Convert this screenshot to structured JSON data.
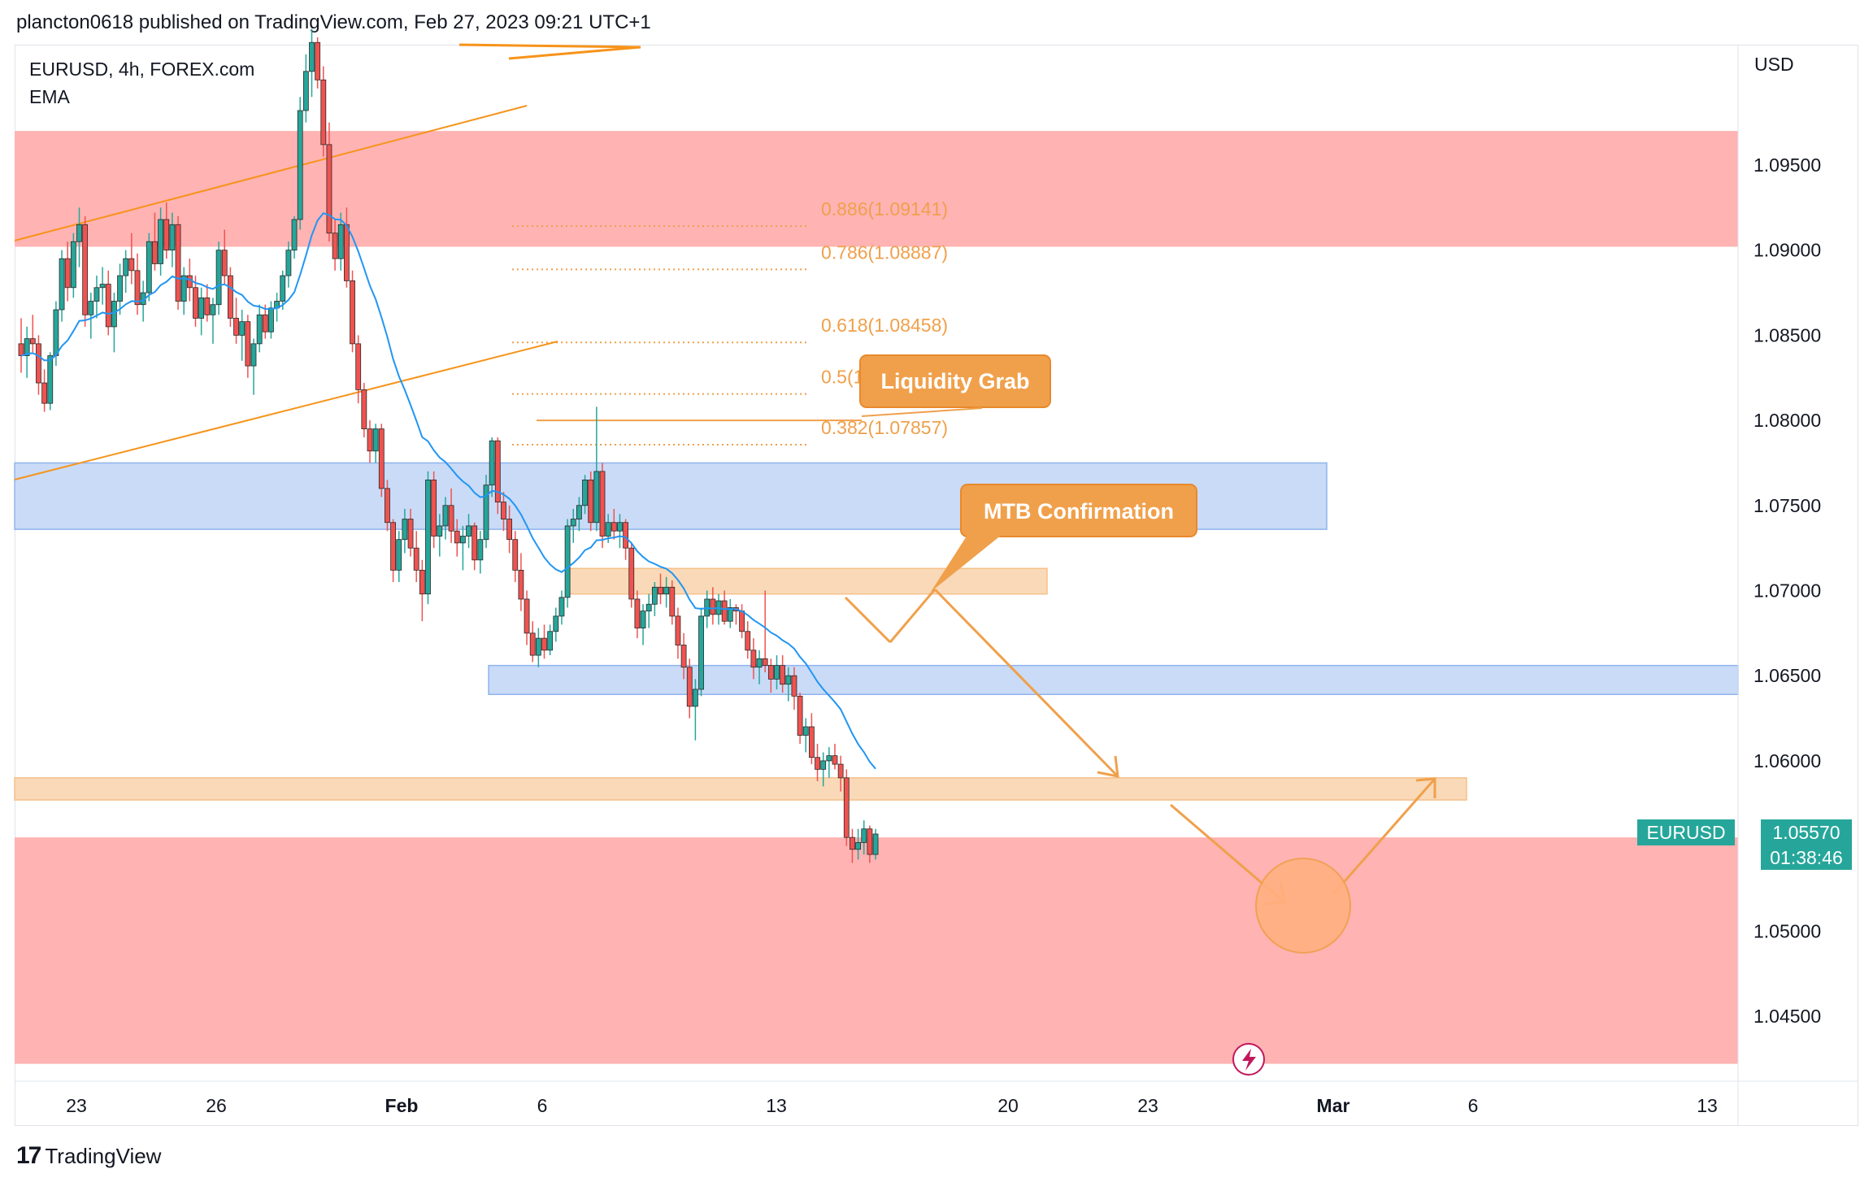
{
  "header": {
    "published_line": "plancton0618 published on TradingView.com, Feb 27, 2023 09:21 UTC+1"
  },
  "legend": {
    "symbol_line": "EURUSD, 4h, FOREX.com",
    "indicator": "EMA"
  },
  "footer": {
    "logo": "17",
    "brand": "TradingView"
  },
  "colors": {
    "bull": "#26a69a",
    "bear": "#ef5350",
    "ema": "#2196f3",
    "supply_zone": "#ffb3b3",
    "demand_zone": "#c9dbf7",
    "order_block": "#f9d9b8",
    "annotation": "#f0a04b"
  },
  "chart_data": {
    "type": "candlestick",
    "symbol": "EURUSD",
    "timeframe": "4h",
    "currency": "USD",
    "ylim": [
      1.042,
      1.103
    ],
    "y_ticks": [
      "1.09500",
      "1.09000",
      "1.08500",
      "1.08000",
      "1.07500",
      "1.07000",
      "1.06500",
      "1.06000",
      "1.05000",
      "1.04500"
    ],
    "x_ticks": [
      "23",
      "26",
      "Feb",
      "6",
      "13",
      "20",
      "23",
      "Mar",
      "6",
      "13"
    ],
    "current_price": "1.05570",
    "countdown": "01:38:46",
    "symbol_tag": "EURUSD",
    "fib_levels": [
      {
        "label": "0.886(1.09141)",
        "price": 1.09141
      },
      {
        "label": "0.786(1.08887)",
        "price": 1.08887
      },
      {
        "label": "0.618(1.08458)",
        "price": 1.08458
      },
      {
        "label": "0.5(1.08155)",
        "price": 1.08155
      },
      {
        "label": "0.382(1.07857)",
        "price": 1.07857
      }
    ],
    "annotations": [
      {
        "text": "Liquidity Grab"
      },
      {
        "text": "MTB Confirmation"
      }
    ],
    "zones": [
      {
        "kind": "supply",
        "from": 1.0902,
        "to": 1.097
      },
      {
        "kind": "demand",
        "from": 1.0736,
        "to": 1.0775
      },
      {
        "kind": "order_block",
        "from": 1.0698,
        "to": 1.0713
      },
      {
        "kind": "demand",
        "from": 1.0639,
        "to": 1.0656
      },
      {
        "kind": "order_block",
        "from": 1.0577,
        "to": 1.059
      },
      {
        "kind": "supply_target",
        "from": 1.0422,
        "to": 1.0555
      }
    ],
    "ohlc": [
      [
        1.0845,
        1.086,
        1.0828,
        1.0838
      ],
      [
        1.0838,
        1.0855,
        1.0825,
        1.0848
      ],
      [
        1.0848,
        1.0862,
        1.084,
        1.0845
      ],
      [
        1.0845,
        1.085,
        1.0815,
        1.0822
      ],
      [
        1.0822,
        1.083,
        1.0805,
        1.081
      ],
      [
        1.081,
        1.084,
        1.0806,
        1.0838
      ],
      [
        1.0838,
        1.087,
        1.0832,
        1.0865
      ],
      [
        1.0865,
        1.09,
        1.0858,
        1.0895
      ],
      [
        1.0895,
        1.0905,
        1.087,
        1.0878
      ],
      [
        1.0878,
        1.091,
        1.0872,
        1.0905
      ],
      [
        1.0905,
        1.0925,
        1.089,
        1.0915
      ],
      [
        1.0915,
        1.092,
        1.0855,
        1.0862
      ],
      [
        1.0862,
        1.0875,
        1.0848,
        1.087
      ],
      [
        1.087,
        1.0885,
        1.086,
        1.0878
      ],
      [
        1.0878,
        1.089,
        1.0868,
        1.088
      ],
      [
        1.088,
        1.0888,
        1.085,
        1.0855
      ],
      [
        1.0855,
        1.0875,
        1.084,
        1.087
      ],
      [
        1.087,
        1.0892,
        1.0862,
        1.0885
      ],
      [
        1.0885,
        1.09,
        1.0875,
        1.0895
      ],
      [
        1.0895,
        1.091,
        1.088,
        1.0888
      ],
      [
        1.0888,
        1.0898,
        1.0862,
        1.0868
      ],
      [
        1.0868,
        1.0882,
        1.0858,
        1.0875
      ],
      [
        1.0875,
        1.091,
        1.087,
        1.0905
      ],
      [
        1.0905,
        1.0922,
        1.0888,
        1.0892
      ],
      [
        1.0892,
        1.0925,
        1.0885,
        1.0918
      ],
      [
        1.0918,
        1.0928,
        1.0895,
        1.09
      ],
      [
        1.09,
        1.0922,
        1.089,
        1.0915
      ],
      [
        1.0915,
        1.092,
        1.0865,
        1.087
      ],
      [
        1.087,
        1.089,
        1.0862,
        1.0885
      ],
      [
        1.0885,
        1.0895,
        1.087,
        1.0878
      ],
      [
        1.0878,
        1.0885,
        1.0855,
        1.086
      ],
      [
        1.086,
        1.0878,
        1.085,
        1.0872
      ],
      [
        1.0872,
        1.088,
        1.0858,
        1.0862
      ],
      [
        1.0862,
        1.0872,
        1.0845,
        1.0868
      ],
      [
        1.0868,
        1.0905,
        1.0862,
        1.09
      ],
      [
        1.09,
        1.0912,
        1.088,
        1.0885
      ],
      [
        1.0885,
        1.089,
        1.0855,
        1.086
      ],
      [
        1.086,
        1.0872,
        1.0845,
        1.085
      ],
      [
        1.085,
        1.0865,
        1.0835,
        1.0858
      ],
      [
        1.0858,
        1.0862,
        1.0825,
        1.0832
      ],
      [
        1.0832,
        1.0848,
        1.0815,
        1.0845
      ],
      [
        1.0845,
        1.0868,
        1.084,
        1.0862
      ],
      [
        1.0862,
        1.0868,
        1.0848,
        1.0852
      ],
      [
        1.0852,
        1.087,
        1.0848,
        1.0866
      ],
      [
        1.0866,
        1.0875,
        1.0858,
        1.087
      ],
      [
        1.087,
        1.0888,
        1.0865,
        1.0885
      ],
      [
        1.0885,
        1.0905,
        1.0878,
        1.09
      ],
      [
        1.09,
        1.092,
        1.0895,
        1.0918
      ],
      [
        1.0918,
        1.099,
        1.0912,
        1.0982
      ],
      [
        1.0982,
        1.1015,
        1.0975,
        1.1005
      ],
      [
        1.1005,
        1.103,
        1.099,
        1.1022
      ],
      [
        1.1022,
        1.1025,
        1.0995,
        1.1
      ],
      [
        1.1,
        1.1008,
        1.0955,
        1.0962
      ],
      [
        1.0962,
        1.0975,
        1.0905,
        1.091
      ],
      [
        1.091,
        1.0918,
        1.0888,
        1.0895
      ],
      [
        1.0895,
        1.0922,
        1.0888,
        1.0915
      ],
      [
        1.0915,
        1.0925,
        1.0878,
        1.0882
      ],
      [
        1.0882,
        1.0888,
        1.084,
        1.0845
      ],
      [
        1.0845,
        1.085,
        1.081,
        1.0818
      ],
      [
        1.0818,
        1.0822,
        1.079,
        1.0795
      ],
      [
        1.0795,
        1.08,
        1.0775,
        1.0782
      ],
      [
        1.0782,
        1.0798,
        1.0775,
        1.0795
      ],
      [
        1.0795,
        1.0798,
        1.0755,
        1.076
      ],
      [
        1.076,
        1.0765,
        1.0735,
        1.074
      ],
      [
        1.074,
        1.0742,
        1.0705,
        1.0712
      ],
      [
        1.0712,
        1.0735,
        1.0705,
        1.073
      ],
      [
        1.073,
        1.0748,
        1.0722,
        1.0742
      ],
      [
        1.0742,
        1.0748,
        1.072,
        1.0725
      ],
      [
        1.0725,
        1.0735,
        1.0705,
        1.0712
      ],
      [
        1.0712,
        1.0718,
        1.0682,
        1.0698
      ],
      [
        1.0698,
        1.077,
        1.0692,
        1.0765
      ],
      [
        1.0765,
        1.077,
        1.0725,
        1.0732
      ],
      [
        1.0732,
        1.0745,
        1.072,
        1.0738
      ],
      [
        1.0738,
        1.0755,
        1.073,
        1.075
      ],
      [
        1.075,
        1.076,
        1.0728,
        1.0735
      ],
      [
        1.0735,
        1.0742,
        1.072,
        1.0728
      ],
      [
        1.0728,
        1.0738,
        1.0712,
        1.0732
      ],
      [
        1.0732,
        1.0745,
        1.0725,
        1.0738
      ],
      [
        1.0738,
        1.074,
        1.0712,
        1.0718
      ],
      [
        1.0718,
        1.0735,
        1.071,
        1.073
      ],
      [
        1.073,
        1.0768,
        1.0725,
        1.0762
      ],
      [
        1.0762,
        1.079,
        1.0755,
        1.0788
      ],
      [
        1.0788,
        1.079,
        1.0745,
        1.0752
      ],
      [
        1.0752,
        1.0758,
        1.0735,
        1.0742
      ],
      [
        1.0742,
        1.075,
        1.0722,
        1.073
      ],
      [
        1.073,
        1.0735,
        1.0705,
        1.0712
      ],
      [
        1.0712,
        1.0722,
        1.0688,
        1.0695
      ],
      [
        1.0695,
        1.07,
        1.0668,
        1.0675
      ],
      [
        1.0675,
        1.0682,
        1.0658,
        1.0662
      ],
      [
        1.0662,
        1.0678,
        1.0655,
        1.0672
      ],
      [
        1.0672,
        1.068,
        1.066,
        1.0665
      ],
      [
        1.0665,
        1.068,
        1.0662,
        1.0676
      ],
      [
        1.0676,
        1.069,
        1.067,
        1.0685
      ],
      [
        1.0685,
        1.07,
        1.068,
        1.0696
      ],
      [
        1.0696,
        1.0742,
        1.069,
        1.0738
      ],
      [
        1.0738,
        1.0748,
        1.0728,
        1.0742
      ],
      [
        1.0742,
        1.0755,
        1.0735,
        1.075
      ],
      [
        1.075,
        1.0768,
        1.0745,
        1.0765
      ],
      [
        1.0765,
        1.077,
        1.0735,
        1.074
      ],
      [
        1.074,
        1.0808,
        1.0735,
        1.077
      ],
      [
        1.077,
        1.0775,
        1.0725,
        1.0732
      ],
      [
        1.0732,
        1.0745,
        1.0728,
        1.074
      ],
      [
        1.074,
        1.0748,
        1.073,
        1.0735
      ],
      [
        1.0735,
        1.0745,
        1.0725,
        1.074
      ],
      [
        1.074,
        1.0742,
        1.0718,
        1.0725
      ],
      [
        1.0725,
        1.0728,
        1.069,
        1.0695
      ],
      [
        1.0695,
        1.07,
        1.0672,
        1.0678
      ],
      [
        1.0678,
        1.0692,
        1.0668,
        1.0688
      ],
      [
        1.0688,
        1.0698,
        1.0678,
        1.0692
      ],
      [
        1.0692,
        1.0705,
        1.0685,
        1.0702
      ],
      [
        1.0702,
        1.071,
        1.0692,
        1.0698
      ],
      [
        1.0698,
        1.0708,
        1.069,
        1.0702
      ],
      [
        1.0702,
        1.0706,
        1.068,
        1.0685
      ],
      [
        1.0685,
        1.069,
        1.066,
        1.0668
      ],
      [
        1.0668,
        1.0675,
        1.0648,
        1.0655
      ],
      [
        1.0655,
        1.066,
        1.0625,
        1.0632
      ],
      [
        1.0632,
        1.0648,
        1.0612,
        1.0642
      ],
      [
        1.0642,
        1.069,
        1.0638,
        1.0685
      ],
      [
        1.0685,
        1.07,
        1.0678,
        1.0695
      ],
      [
        1.0695,
        1.0702,
        1.068,
        1.0686
      ],
      [
        1.0686,
        1.0698,
        1.068,
        1.0694
      ],
      [
        1.0694,
        1.07,
        1.068,
        1.0682
      ],
      [
        1.0682,
        1.0695,
        1.0678,
        1.069
      ],
      [
        1.069,
        1.0692,
        1.068,
        1.0688
      ],
      [
        1.0688,
        1.0692,
        1.0672,
        1.0676
      ],
      [
        1.0676,
        1.0682,
        1.066,
        1.0665
      ],
      [
        1.0665,
        1.0672,
        1.0648,
        1.0655
      ],
      [
        1.0655,
        1.0665,
        1.0645,
        1.066
      ],
      [
        1.066,
        1.07,
        1.0652,
        1.0656
      ],
      [
        1.0656,
        1.066,
        1.064,
        1.0648
      ],
      [
        1.0648,
        1.0662,
        1.0642,
        1.0656
      ],
      [
        1.0656,
        1.0662,
        1.064,
        1.0645
      ],
      [
        1.0645,
        1.0655,
        1.0635,
        1.065
      ],
      [
        1.065,
        1.0655,
        1.063,
        1.0638
      ],
      [
        1.0638,
        1.064,
        1.061,
        1.0615
      ],
      [
        1.0615,
        1.0625,
        1.0605,
        1.062
      ],
      [
        1.062,
        1.0628,
        1.0598,
        1.0602
      ],
      [
        1.0602,
        1.061,
        1.0588,
        1.0595
      ],
      [
        1.0595,
        1.0605,
        1.0585,
        1.06
      ],
      [
        1.06,
        1.0608,
        1.059,
        1.0603
      ],
      [
        1.0603,
        1.061,
        1.0595,
        1.0598
      ],
      [
        1.0598,
        1.0603,
        1.0582,
        1.059
      ],
      [
        1.059,
        1.0595,
        1.055,
        1.0555
      ],
      [
        1.0555,
        1.056,
        1.054,
        1.0548
      ],
      [
        1.0548,
        1.056,
        1.0542,
        1.0552
      ],
      [
        1.0552,
        1.0565,
        1.0545,
        1.056
      ],
      [
        1.056,
        1.0562,
        1.054,
        1.0545
      ],
      [
        1.0545,
        1.056,
        1.0542,
        1.0557
      ]
    ]
  }
}
